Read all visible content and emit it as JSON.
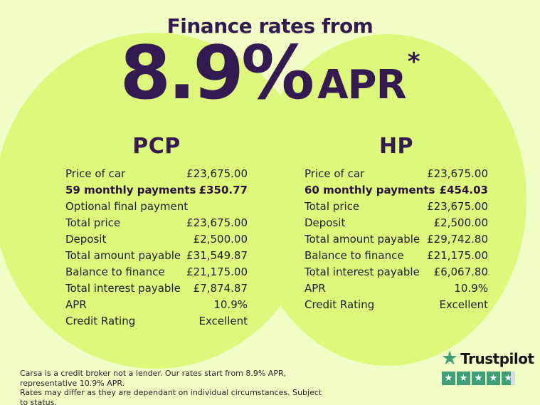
{
  "header": {
    "tagline": "Finance rates from",
    "rate": "8.9%",
    "apr_label": "APR",
    "asterisk": "*"
  },
  "pcp": {
    "title": "PCP",
    "rows": [
      {
        "label": "Price of car",
        "value": "£23,675.00"
      },
      {
        "label": "59 monthly payments",
        "value": "£350.77",
        "bold": true
      },
      {
        "label": "Optional final payment",
        "value": ""
      },
      {
        "label": "Total price",
        "value": "£23,675.00"
      },
      {
        "label": "Deposit",
        "value": "£2,500.00"
      },
      {
        "label": "Total amount payable",
        "value": "£31,549.87"
      },
      {
        "label": "Balance to finance",
        "value": "£21,175.00"
      },
      {
        "label": "Total interest payable",
        "value": "£7,874.87"
      },
      {
        "label": "APR",
        "value": "10.9%"
      },
      {
        "label": "Credit Rating",
        "value": "Excellent"
      }
    ]
  },
  "hp": {
    "title": "HP",
    "rows": [
      {
        "label": "Price of car",
        "value": "£23,675.00"
      },
      {
        "label": "60 monthly payments",
        "value": "£454.03",
        "bold": true
      },
      {
        "label": "Total price",
        "value": "£23,675.00"
      },
      {
        "label": "Deposit",
        "value": "£2,500.00"
      },
      {
        "label": "Total amount payable",
        "value": "£29,742.80"
      },
      {
        "label": "Balance to finance",
        "value": "£21,175.00"
      },
      {
        "label": "Total interest payable",
        "value": "£6,067.80"
      },
      {
        "label": "APR",
        "value": "10.9%"
      },
      {
        "label": "Credit Rating",
        "value": "Excellent"
      }
    ]
  },
  "footer": {
    "disclaimer_line1": "Carsa is a credit broker not a lender. Our rates start from 8.9% APR, representative 10.9% APR.",
    "disclaimer_line2": "Rates may differ as they are dependant on individual circumstances. Subject to status."
  },
  "trustpilot": {
    "brand": "Trustpilot",
    "rating": {
      "full_stars": 4,
      "partial_fill_percent": 68,
      "total_boxes": 5
    }
  },
  "icons": {
    "star": "★"
  },
  "colors": {
    "background": "#f3fdc6",
    "circle_green": "#def87c",
    "heading_purple": "#331a52",
    "table_text": "#1d1d22",
    "trustpilot_green": "#3fa078",
    "partial_star_gray": "#d7dbe2"
  }
}
